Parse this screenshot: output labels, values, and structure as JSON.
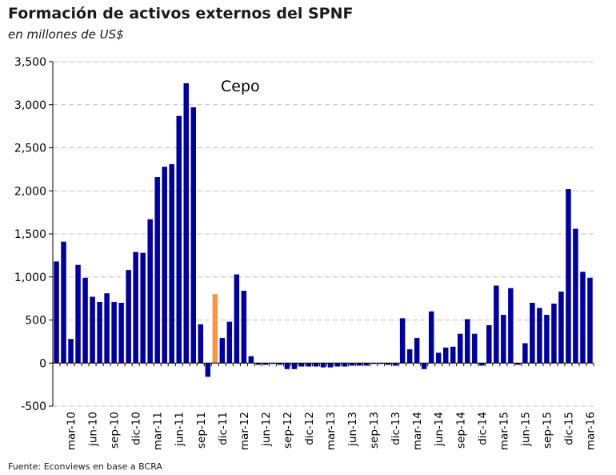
{
  "chart_data": {
    "type": "bar",
    "title": "Formación de activos externos del SPNF",
    "subtitle": "en millones de US$",
    "source": "Fuente: Econviews en base a BCRA",
    "annotation": "Cepo",
    "highlight_label": "nov-11",
    "ylim": [
      -500,
      3500
    ],
    "yticks": [
      -500,
      0,
      500,
      1000,
      1500,
      2000,
      2500,
      3000,
      3500
    ],
    "ytick_labels": [
      "-500",
      "0",
      "500",
      "1,000",
      "1,500",
      "2,000",
      "2,500",
      "3,000",
      "3,500"
    ],
    "xtick_labels": [
      "mar-10",
      "jun-10",
      "sep-10",
      "dic-10",
      "mar-11",
      "jun-11",
      "sep-11",
      "dic-11",
      "mar-12",
      "jun-12",
      "sep-12",
      "dic-12",
      "mar-13",
      "jun-13",
      "sep-13",
      "dic-13",
      "mar-14",
      "jun-14",
      "sep-14",
      "dic-14",
      "mar-15",
      "jun-15",
      "sep-15",
      "dic-15",
      "mar-16"
    ],
    "grid": "horizontal dashed",
    "colors": {
      "bar": "#000099",
      "highlight": "#f79646",
      "grid": "#bfbfbf",
      "axis": "#000000"
    },
    "categories": [
      "ene-10",
      "feb-10",
      "mar-10",
      "abr-10",
      "may-10",
      "jun-10",
      "jul-10",
      "ago-10",
      "sep-10",
      "oct-10",
      "nov-10",
      "dic-10",
      "ene-11",
      "feb-11",
      "mar-11",
      "abr-11",
      "may-11",
      "jun-11",
      "jul-11",
      "ago-11",
      "sep-11",
      "oct-11",
      "nov-11",
      "dic-11",
      "ene-12",
      "feb-12",
      "mar-12",
      "abr-12",
      "may-12",
      "jun-12",
      "jul-12",
      "ago-12",
      "sep-12",
      "oct-12",
      "nov-12",
      "dic-12",
      "ene-13",
      "feb-13",
      "mar-13",
      "abr-13",
      "may-13",
      "jun-13",
      "jul-13",
      "ago-13",
      "sep-13",
      "oct-13",
      "nov-13",
      "dic-13",
      "ene-14",
      "feb-14",
      "mar-14",
      "abr-14",
      "may-14",
      "jun-14",
      "jul-14",
      "ago-14",
      "sep-14",
      "oct-14",
      "nov-14",
      "dic-14",
      "ene-15",
      "feb-15",
      "mar-15",
      "abr-15",
      "may-15",
      "jun-15",
      "jul-15",
      "ago-15",
      "sep-15",
      "oct-15",
      "nov-15",
      "dic-15",
      "ene-16",
      "feb-16",
      "mar-16"
    ],
    "values": [
      1180,
      1410,
      280,
      1140,
      990,
      770,
      710,
      810,
      710,
      700,
      1080,
      1290,
      1280,
      1670,
      2160,
      2280,
      2310,
      2870,
      3250,
      2970,
      450,
      -160,
      800,
      290,
      480,
      1030,
      840,
      80,
      -20,
      -20,
      -10,
      -20,
      -70,
      -70,
      -40,
      -40,
      -40,
      -50,
      -50,
      -40,
      -40,
      -30,
      -30,
      -30,
      -10,
      -10,
      -20,
      -30,
      520,
      160,
      290,
      -70,
      600,
      120,
      180,
      190,
      340,
      510,
      340,
      -30,
      440,
      900,
      560,
      870,
      -20,
      230,
      700,
      640,
      560,
      690,
      830,
      2020,
      1560,
      1060,
      990
    ]
  }
}
